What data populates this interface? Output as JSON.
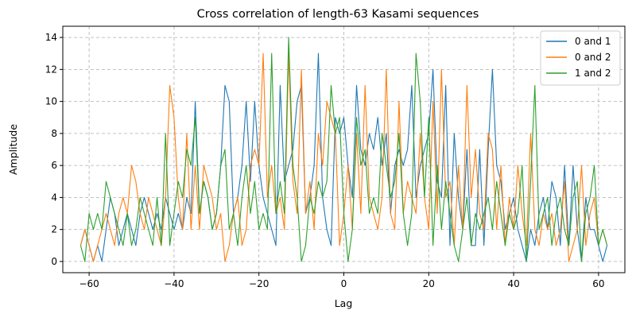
{
  "chart_data": {
    "type": "line",
    "title": "Cross correlation of length-63 Kasami sequences",
    "xlabel": "Lag",
    "ylabel": "Amplitude",
    "xlim": [
      -66.2,
      66.2
    ],
    "ylim": [
      -0.7,
      14.7
    ],
    "xticks": [
      -60,
      -40,
      -20,
      0,
      20,
      40,
      60
    ],
    "yticks": [
      0,
      2,
      4,
      6,
      8,
      10,
      12,
      14
    ],
    "grid": true,
    "legend_position": "top-right",
    "x_start": -62,
    "series": [
      {
        "name": "0 and 1",
        "color": "#1f77b4",
        "values": [
          1,
          2,
          1,
          0,
          1,
          0,
          2,
          4,
          3,
          1,
          2,
          3,
          2,
          1,
          3,
          4,
          3,
          2,
          3,
          2,
          4,
          3,
          2,
          3,
          2,
          4,
          3,
          10,
          3,
          5,
          4,
          2,
          3,
          6,
          11,
          10,
          3,
          4,
          6,
          10,
          5,
          10,
          6,
          4,
          3,
          2,
          1,
          11,
          5,
          6,
          7,
          10,
          11,
          3,
          4,
          6,
          13,
          4,
          2,
          1,
          9,
          8,
          9,
          6,
          4,
          11,
          7,
          6,
          8,
          7,
          9,
          6,
          8,
          3,
          6,
          7,
          6,
          7,
          11,
          4,
          6,
          7,
          8,
          12,
          5,
          4,
          11,
          1,
          8,
          4,
          2,
          7,
          1,
          1,
          7,
          1,
          7,
          12,
          6,
          5,
          2,
          3,
          4,
          2,
          1,
          0,
          2,
          1,
          3,
          4,
          2,
          5,
          4,
          1,
          6,
          1,
          6,
          2,
          0,
          4,
          2,
          2,
          1,
          0,
          1
        ]
      },
      {
        "name": "0 and 2",
        "color": "#ff7f0e",
        "values": [
          1,
          2,
          1,
          0,
          1,
          2,
          3,
          2,
          1,
          3,
          4,
          3,
          6,
          5,
          3,
          2,
          4,
          3,
          2,
          1,
          4,
          11,
          9,
          4,
          2,
          8,
          2,
          6,
          2,
          6,
          5,
          4,
          2,
          3,
          0,
          1,
          3,
          4,
          1,
          2,
          6,
          7,
          6,
          13,
          4,
          6,
          3,
          4,
          2,
          13,
          5,
          3,
          12,
          3,
          5,
          2,
          8,
          6,
          10,
          9,
          8,
          1,
          3,
          6,
          2,
          8,
          3,
          11,
          4,
          3,
          2,
          4,
          12,
          3,
          2,
          10,
          3,
          5,
          4,
          3,
          8,
          4,
          2,
          10,
          3,
          12,
          4,
          5,
          1,
          6,
          2,
          11,
          4,
          7,
          3,
          2,
          8,
          7,
          2,
          6,
          1,
          4,
          2,
          6,
          3,
          1,
          8,
          2,
          1,
          3,
          2,
          3,
          1,
          2,
          5,
          0,
          1,
          2,
          6,
          1,
          3,
          4,
          1,
          2,
          1
        ]
      },
      {
        "name": "1 and 2",
        "color": "#2ca02c",
        "values": [
          1,
          0,
          3,
          2,
          3,
          2,
          5,
          4,
          3,
          2,
          1,
          3,
          1,
          2,
          4,
          3,
          2,
          1,
          4,
          1,
          8,
          1,
          3,
          5,
          4,
          7,
          6,
          9,
          3,
          5,
          4,
          2,
          3,
          6,
          7,
          2,
          3,
          1,
          4,
          6,
          3,
          5,
          2,
          3,
          2,
          13,
          3,
          5,
          3,
          14,
          6,
          4,
          0,
          1,
          4,
          3,
          5,
          4,
          5,
          11,
          8,
          9,
          3,
          0,
          2,
          9,
          6,
          7,
          3,
          4,
          3,
          8,
          6,
          4,
          5,
          8,
          3,
          1,
          3,
          13,
          10,
          4,
          9,
          1,
          6,
          2,
          5,
          3,
          1,
          0,
          2,
          4,
          1,
          3,
          2,
          3,
          4,
          2,
          5,
          3,
          1,
          3,
          2,
          3,
          6,
          0,
          5,
          11,
          2,
          3,
          4,
          1,
          3,
          4,
          2,
          1,
          4,
          5,
          0,
          3,
          4,
          6,
          1,
          2,
          1
        ]
      }
    ]
  }
}
